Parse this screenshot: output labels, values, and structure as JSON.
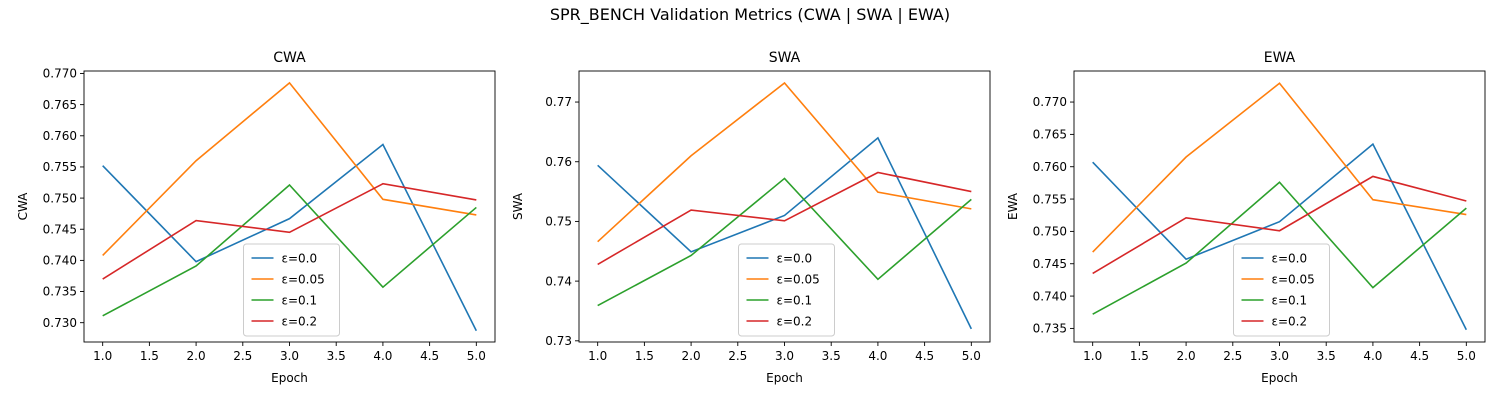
{
  "figure": {
    "suptitle": "SPR_BENCH Validation Metrics (CWA | SWA | EWA)"
  },
  "colors": {
    "series": [
      "#1f77b4",
      "#ff7f0e",
      "#2ca02c",
      "#d62728"
    ]
  },
  "chart_data": [
    {
      "type": "line",
      "title": "CWA",
      "xlabel": "Epoch",
      "ylabel": "CWA",
      "x": [
        1,
        2,
        3,
        4,
        5
      ],
      "xlim": [
        0.8,
        5.2
      ],
      "ylim": [
        0.7269,
        0.7704
      ],
      "xticks": [
        "1.0",
        "1.5",
        "2.0",
        "2.5",
        "3.0",
        "3.5",
        "4.0",
        "4.5",
        "5.0"
      ],
      "yticks": [
        "0.730",
        "0.735",
        "0.740",
        "0.745",
        "0.750",
        "0.755",
        "0.760",
        "0.765",
        "0.770"
      ],
      "grid": false,
      "legend": "lower center",
      "series": [
        {
          "name": "ε=0.0",
          "values": [
            0.7552,
            0.7398,
            0.7467,
            0.7586,
            0.7287
          ]
        },
        {
          "name": "ε=0.05",
          "values": [
            0.7408,
            0.756,
            0.7685,
            0.7498,
            0.7473
          ]
        },
        {
          "name": "ε=0.1",
          "values": [
            0.7311,
            0.7391,
            0.7521,
            0.7357,
            0.7485
          ]
        },
        {
          "name": "ε=0.2",
          "values": [
            0.737,
            0.7464,
            0.7445,
            0.7523,
            0.7497
          ]
        }
      ]
    },
    {
      "type": "line",
      "title": "SWA",
      "xlabel": "Epoch",
      "ylabel": "SWA",
      "x": [
        1,
        2,
        3,
        4,
        5
      ],
      "xlim": [
        0.8,
        5.2
      ],
      "ylim": [
        0.7298,
        0.7752
      ],
      "xticks": [
        "1.0",
        "1.5",
        "2.0",
        "2.5",
        "3.0",
        "3.5",
        "4.0",
        "4.5",
        "5.0"
      ],
      "yticks": [
        "0.73",
        "0.74",
        "0.75",
        "0.76",
        "0.77"
      ],
      "grid": false,
      "legend": "lower center",
      "series": [
        {
          "name": "ε=0.0",
          "values": [
            0.7594,
            0.7449,
            0.751,
            0.764,
            0.732
          ]
        },
        {
          "name": "ε=0.05",
          "values": [
            0.7466,
            0.761,
            0.7732,
            0.7549,
            0.7521
          ]
        },
        {
          "name": "ε=0.1",
          "values": [
            0.7359,
            0.7443,
            0.7572,
            0.7403,
            0.7537
          ]
        },
        {
          "name": "ε=0.2",
          "values": [
            0.7428,
            0.7519,
            0.7501,
            0.7582,
            0.755
          ]
        }
      ]
    },
    {
      "type": "line",
      "title": "EWA",
      "xlabel": "Epoch",
      "ylabel": "EWA",
      "x": [
        1,
        2,
        3,
        4,
        5
      ],
      "xlim": [
        0.8,
        5.2
      ],
      "ylim": [
        0.7329,
        0.7748
      ],
      "xticks": [
        "1.0",
        "1.5",
        "2.0",
        "2.5",
        "3.0",
        "3.5",
        "4.0",
        "4.5",
        "5.0"
      ],
      "yticks": [
        "0.735",
        "0.740",
        "0.745",
        "0.750",
        "0.755",
        "0.760",
        "0.765",
        "0.770"
      ],
      "grid": false,
      "legend": "lower center",
      "series": [
        {
          "name": "ε=0.0",
          "values": [
            0.7607,
            0.7457,
            0.7515,
            0.7635,
            0.7348
          ]
        },
        {
          "name": "ε=0.05",
          "values": [
            0.7468,
            0.7615,
            0.7729,
            0.7549,
            0.7526
          ]
        },
        {
          "name": "ε=0.1",
          "values": [
            0.7372,
            0.7451,
            0.7576,
            0.7413,
            0.7536
          ]
        },
        {
          "name": "ε=0.2",
          "values": [
            0.7435,
            0.7521,
            0.7501,
            0.7585,
            0.7547
          ]
        }
      ]
    }
  ]
}
